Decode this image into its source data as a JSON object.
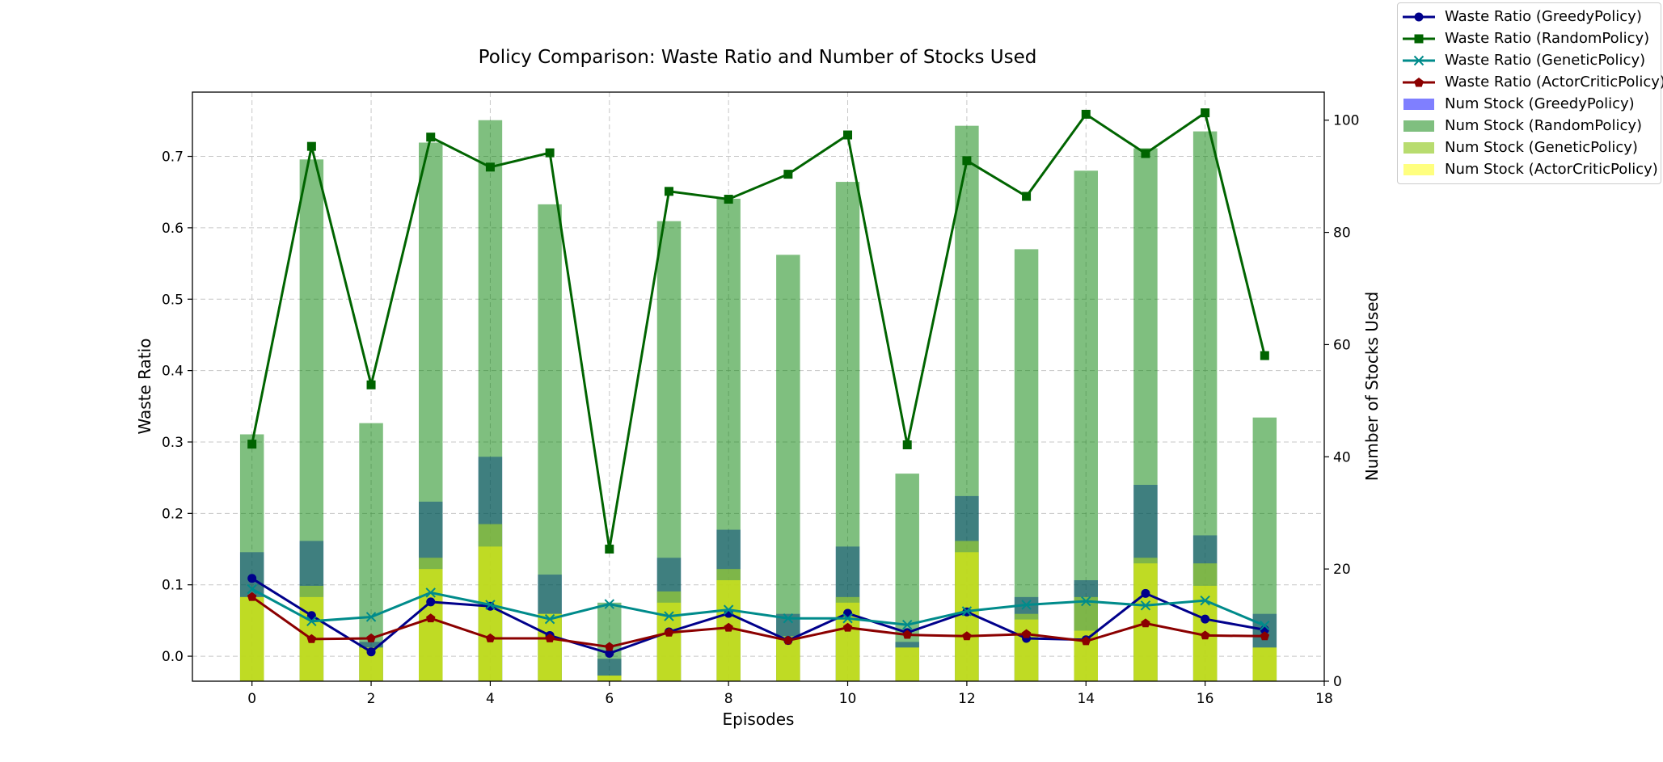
{
  "chart_data": {
    "type": "bar",
    "title": "Policy Comparison: Waste Ratio and Number of Stocks Used",
    "xlabel": "Episodes",
    "ylabel": "Waste Ratio",
    "ylabel_right": "Number of Stocks Used",
    "xlim": [
      -1,
      18
    ],
    "ylim": [
      -0.035,
      0.79
    ],
    "ylim_right": [
      0,
      105
    ],
    "xticks": [
      "0",
      "2",
      "4",
      "6",
      "8",
      "10",
      "12",
      "14",
      "16",
      "18"
    ],
    "yticks": [
      "0.0",
      "0.1",
      "0.2",
      "0.3",
      "0.4",
      "0.5",
      "0.6",
      "0.7"
    ],
    "yticks_right": [
      "0",
      "20",
      "40",
      "60",
      "80",
      "100"
    ],
    "grid": true,
    "legend_position": "outside top-right",
    "episodes": [
      0,
      1,
      2,
      3,
      4,
      5,
      6,
      7,
      8,
      9,
      10,
      11,
      12,
      13,
      14,
      15,
      16,
      17
    ],
    "line_series": [
      {
        "name": "Waste Ratio (GreedyPolicy)",
        "color": "#00008b",
        "marker": "circle",
        "values": [
          0.109,
          0.057,
          0.006,
          0.076,
          0.07,
          0.029,
          0.004,
          0.034,
          0.06,
          0.022,
          0.06,
          0.033,
          0.062,
          0.025,
          0.023,
          0.088,
          0.052,
          0.037
        ]
      },
      {
        "name": "Waste Ratio (RandomPolicy)",
        "color": "#006400",
        "marker": "square",
        "values": [
          0.297,
          0.714,
          0.38,
          0.727,
          0.685,
          0.705,
          0.15,
          0.651,
          0.64,
          0.675,
          0.73,
          0.296,
          0.694,
          0.644,
          0.759,
          0.704,
          0.761,
          0.421
        ]
      },
      {
        "name": "Waste Ratio (GeneticPolicy)",
        "color": "#008b8b",
        "marker": "x",
        "values": [
          0.094,
          0.049,
          0.055,
          0.089,
          0.072,
          0.052,
          0.073,
          0.056,
          0.065,
          0.053,
          0.053,
          0.044,
          0.063,
          0.072,
          0.077,
          0.071,
          0.078,
          0.043
        ]
      },
      {
        "name": "Waste Ratio (ActorCriticPolicy)",
        "color": "#8b0000",
        "marker": "pentagon",
        "values": [
          0.083,
          0.024,
          0.025,
          0.053,
          0.025,
          0.025,
          0.013,
          0.033,
          0.04,
          0.022,
          0.04,
          0.03,
          0.028,
          0.031,
          0.021,
          0.046,
          0.029,
          0.028
        ]
      }
    ],
    "bar_series": [
      {
        "name": "Num Stock (GreedyPolicy)",
        "color": "#0000ff",
        "opacity": 0.5,
        "values": [
          23,
          25,
          7,
          32,
          40,
          19,
          4,
          22,
          27,
          12,
          24,
          7,
          33,
          15,
          18,
          35,
          26,
          12
        ]
      },
      {
        "name": "Num Stock (RandomPolicy)",
        "color": "#008000",
        "opacity": 0.5,
        "values": [
          44,
          93,
          46,
          96,
          100,
          85,
          14,
          82,
          86,
          76,
          89,
          37,
          99,
          77,
          91,
          95,
          98,
          47
        ]
      },
      {
        "name": "Num Stock (GeneticPolicy)",
        "color": "#9acd32",
        "opacity": 0.7,
        "values": [
          15,
          17,
          6,
          22,
          28,
          12,
          1,
          16,
          20,
          8,
          15,
          6,
          25,
          12,
          15,
          22,
          21,
          6
        ]
      },
      {
        "name": "Num Stock (ActorCriticPolicy)",
        "color": "#ffff00",
        "opacity": 0.5,
        "values": [
          15,
          15,
          6,
          20,
          24,
          12,
          1,
          14,
          18,
          8,
          14,
          6,
          23,
          11,
          9,
          21,
          17,
          6
        ]
      }
    ]
  }
}
